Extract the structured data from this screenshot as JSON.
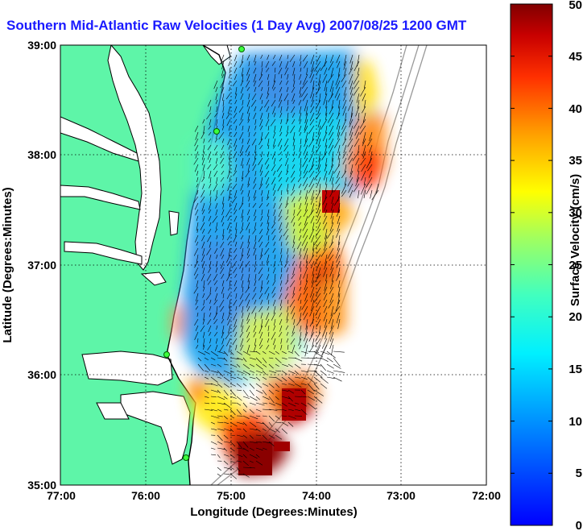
{
  "title": "Southern Mid-Atlantic Raw Velocities (1 Day Avg) 2007/08/25 1200 GMT",
  "x_axis": {
    "label": "Longitude (Degrees:Minutes)",
    "ticks": [
      "77:00",
      "76:00",
      "75:00",
      "74:00",
      "73:00",
      "72:00"
    ],
    "range": [
      -77,
      -72
    ]
  },
  "y_axis": {
    "label": "Latitude (Degrees:Minutes)",
    "ticks": [
      "39:00",
      "38:00",
      "37:00",
      "36:00",
      "35:00"
    ],
    "range": [
      35,
      39
    ]
  },
  "colorbar": {
    "label": "Surface Velocity (cm/s)",
    "ticks": [
      "0",
      "5",
      "10",
      "15",
      "20",
      "25",
      "30",
      "35",
      "40",
      "45",
      "50"
    ],
    "range": [
      0,
      50
    ],
    "colormap": "jet"
  },
  "colors": {
    "land": "#5ef5a8",
    "coastline": "#000000",
    "bathymetry": "#9a9a9a",
    "station": "#3dff3d",
    "grid": "#000000"
  },
  "grid": "dotted"
}
